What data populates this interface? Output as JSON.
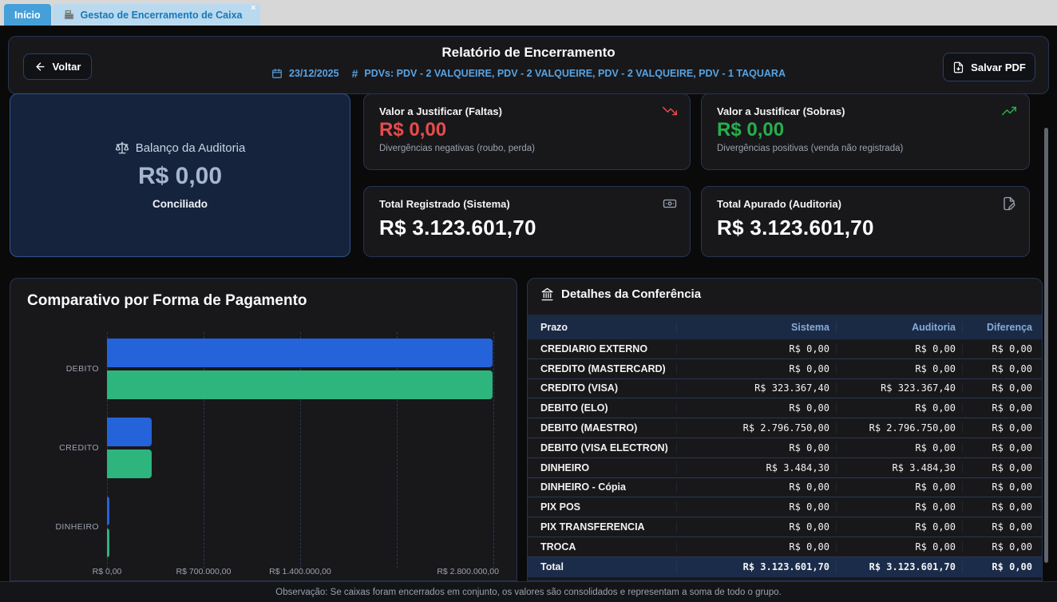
{
  "window": {
    "tabs": [
      {
        "label": "Início",
        "active": true
      },
      {
        "label": "Gestao de Encerramento de Caixa",
        "active": false,
        "icon": "cash-register-icon",
        "close_glyph": "×"
      }
    ]
  },
  "header": {
    "back_arrow": "←",
    "back_button": "Voltar",
    "title": "Relatório de Encerramento",
    "date": "23/12/2025",
    "pdv_hash": "#",
    "pdv_list": "PDVs: PDV - 2 VALQUEIRE, PDV - 2 VALQUEIRE, PDV - 2 VALQUEIRE, PDV - 1 TAQUARA",
    "save_pdf_button": "Salvar PDF"
  },
  "summary_cards": {
    "balanco": {
      "title": "Balanço da Auditoria",
      "value": "R$ 0,00",
      "status": "Conciliado"
    },
    "faltas": {
      "title": "Valor a Justificar (Faltas)",
      "value": "R$ 0,00",
      "subtitle": "Divergências negativas (roubo, perda)",
      "accent": "#e84b4b"
    },
    "sobras": {
      "title": "Valor a Justificar (Sobras)",
      "value": "R$ 0,00",
      "subtitle": "Divergências positivas (venda não registrada)",
      "accent": "#25b04c"
    },
    "registrado": {
      "title": "Total Registrado (Sistema)",
      "value": "R$ 3.123.601,70"
    },
    "apurado": {
      "title": "Total Apurado (Auditoria)",
      "value": "R$ 3.123.601,70"
    }
  },
  "chart_data": {
    "type": "bar",
    "orientation": "horizontal",
    "title": "Comparativo por Forma de Pagamento",
    "categories": [
      "DEBITO",
      "CREDITO",
      "DINHEIRO"
    ],
    "series": [
      {
        "name": "Sistema",
        "color": "#2563db",
        "values": [
          2796750.0,
          323367.4,
          3484.3
        ]
      },
      {
        "name": "Auditoria",
        "color": "#2eb47d",
        "values": [
          2796750.0,
          323367.4,
          3484.3
        ]
      }
    ],
    "xlim": [
      0,
      2800000
    ],
    "x_tick_values": [
      0,
      700000,
      1400000,
      2800000
    ],
    "x_tick_labels": [
      "R$ 0,00",
      "R$ 700.000,00",
      "R$ 1.400.000,00",
      "R$ 2.800.000,00"
    ],
    "grid": true,
    "legend_position": "none"
  },
  "conference_table": {
    "title": "Detalhes da Conferência",
    "columns": [
      "Prazo",
      "Sistema",
      "Auditoria",
      "Diferença"
    ],
    "rows": [
      {
        "prazo": "CREDIARIO EXTERNO",
        "sistema": "R$ 0,00",
        "auditoria": "R$ 0,00",
        "diferenca": "R$ 0,00"
      },
      {
        "prazo": "CREDITO (MASTERCARD)",
        "sistema": "R$ 0,00",
        "auditoria": "R$ 0,00",
        "diferenca": "R$ 0,00"
      },
      {
        "prazo": "CREDITO (VISA)",
        "sistema": "R$ 323.367,40",
        "auditoria": "R$ 323.367,40",
        "diferenca": "R$ 0,00"
      },
      {
        "prazo": "DEBITO (ELO)",
        "sistema": "R$ 0,00",
        "auditoria": "R$ 0,00",
        "diferenca": "R$ 0,00"
      },
      {
        "prazo": "DEBITO (MAESTRO)",
        "sistema": "R$ 2.796.750,00",
        "auditoria": "R$ 2.796.750,00",
        "diferenca": "R$ 0,00"
      },
      {
        "prazo": "DEBITO (VISA ELECTRON)",
        "sistema": "R$ 0,00",
        "auditoria": "R$ 0,00",
        "diferenca": "R$ 0,00"
      },
      {
        "prazo": "DINHEIRO",
        "sistema": "R$ 3.484,30",
        "auditoria": "R$ 3.484,30",
        "diferenca": "R$ 0,00"
      },
      {
        "prazo": "DINHEIRO - Cópia",
        "sistema": "R$ 0,00",
        "auditoria": "R$ 0,00",
        "diferenca": "R$ 0,00"
      },
      {
        "prazo": "PIX POS",
        "sistema": "R$ 0,00",
        "auditoria": "R$ 0,00",
        "diferenca": "R$ 0,00"
      },
      {
        "prazo": "PIX TRANSFERENCIA",
        "sistema": "R$ 0,00",
        "auditoria": "R$ 0,00",
        "diferenca": "R$ 0,00"
      },
      {
        "prazo": "TROCA",
        "sistema": "R$ 0,00",
        "auditoria": "R$ 0,00",
        "diferenca": "R$ 0,00"
      }
    ],
    "total_row": {
      "prazo": "Total",
      "sistema": "R$ 3.123.601,70",
      "auditoria": "R$ 3.123.601,70",
      "diferenca": "R$ 0,00"
    }
  },
  "footer": {
    "note": "Observação: Se caixas foram encerrados em conjunto, os valores são consolidados e representam a soma de todo o grupo."
  }
}
